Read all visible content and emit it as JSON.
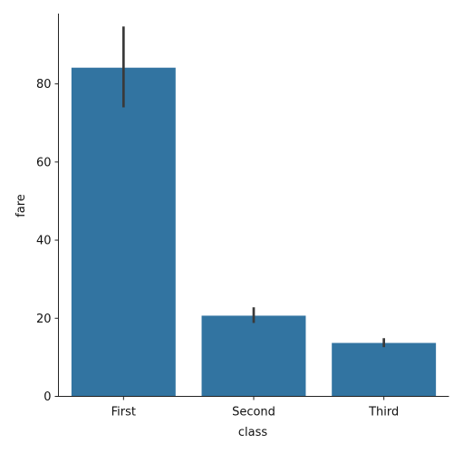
{
  "chart_data": {
    "type": "bar",
    "title": "",
    "xlabel": "class",
    "ylabel": "fare",
    "categories": [
      "First",
      "Second",
      "Third"
    ],
    "values": [
      84.15,
      20.66,
      13.68
    ],
    "error_bars": [
      {
        "low": 74.0,
        "high": 94.7
      },
      {
        "low": 18.8,
        "high": 22.8
      },
      {
        "low": 12.6,
        "high": 14.9
      }
    ],
    "yticks": [
      0,
      20,
      40,
      60,
      80
    ],
    "ylim": [
      0,
      98
    ],
    "grid": false,
    "legend": "none",
    "colors": {
      "bar": "#3274a1",
      "errorbar": "#3a3a3a",
      "axis": "#222222"
    }
  }
}
